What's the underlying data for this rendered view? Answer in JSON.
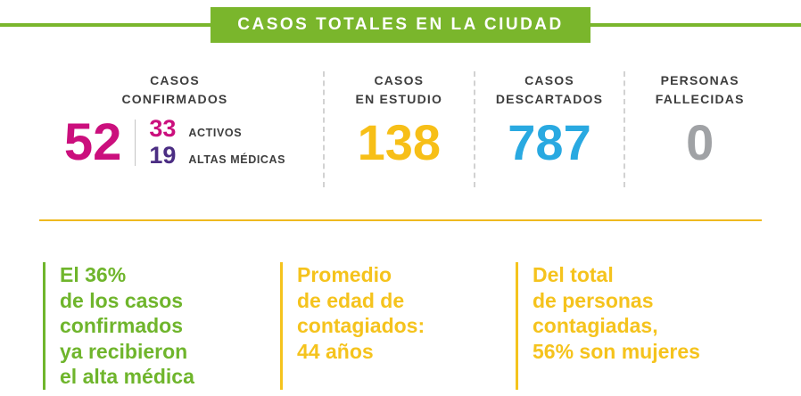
{
  "header": {
    "title": "CASOS TOTALES EN LA CIUDAD"
  },
  "stats": {
    "confirmed": {
      "label": "CASOS\nCONFIRMADOS",
      "value": "52",
      "active_value": "33",
      "active_label": "ACTIVOS",
      "recovered_value": "19",
      "recovered_label": "ALTAS MÉDICAS"
    },
    "in_study": {
      "label": "CASOS\nEN ESTUDIO",
      "value": "138"
    },
    "discarded": {
      "label": "CASOS\nDESCARTADOS",
      "value": "787"
    },
    "deceased": {
      "label": "PERSONAS\nFALLECIDAS",
      "value": "0"
    }
  },
  "notes": [
    {
      "text": "El 36%\nde los casos\nconfirmados\nya recibieron\nel alta médica"
    },
    {
      "text": "Promedio\nde edad de\ncontagiados:\n44 años"
    },
    {
      "text": "Del total\nde personas\ncontagiadas,\n56% son mujeres"
    }
  ],
  "colors": {
    "green": "#7ab62c",
    "magenta": "#cb0f7d",
    "purple": "#4b2d83",
    "yellow": "#f7bf17",
    "blue": "#29a9e1",
    "gray": "#a0a2a5",
    "dark_text": "#3d3d3d",
    "rule_yellow": "#efb91f"
  },
  "chart_data": {
    "type": "table",
    "title": "CASOS TOTALES EN LA CIUDAD",
    "categories": [
      "Casos confirmados",
      "Activos",
      "Altas médicas",
      "Casos en estudio",
      "Casos descartados",
      "Personas fallecidas"
    ],
    "values": [
      52,
      33,
      19,
      138,
      787,
      0
    ],
    "annotations": [
      "El 36% de los casos confirmados ya recibieron el alta médica",
      "Promedio de edad de contagiados: 44 años",
      "Del total de personas contagiadas, 56% son mujeres"
    ]
  }
}
